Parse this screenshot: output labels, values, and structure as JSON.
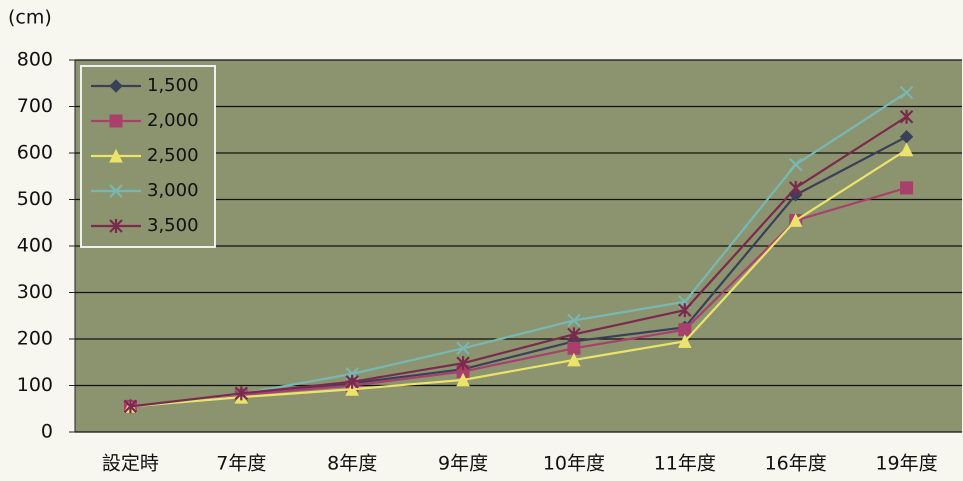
{
  "chart_data": {
    "type": "line",
    "y_label": "(cm)",
    "categories": [
      "設定時",
      "7年度",
      "8年度",
      "9年度",
      "10年度",
      "11年度",
      "16年度",
      "19年度"
    ],
    "series": [
      {
        "name": "1,500",
        "color": "#3b3f5a",
        "marker": "diamond",
        "values": [
          55,
          82,
          105,
          135,
          195,
          225,
          510,
          635
        ]
      },
      {
        "name": "2,000",
        "color": "#a8406c",
        "marker": "square",
        "values": [
          55,
          80,
          100,
          130,
          180,
          220,
          455,
          525
        ]
      },
      {
        "name": "2,500",
        "color": "#ece46a",
        "marker": "triangle",
        "values": [
          55,
          75,
          92,
          112,
          155,
          195,
          455,
          607
        ]
      },
      {
        "name": "3,000",
        "color": "#78b8b4",
        "marker": "x",
        "values": [
          55,
          82,
          125,
          180,
          240,
          280,
          575,
          730
        ]
      },
      {
        "name": "3,500",
        "color": "#7a2a4c",
        "marker": "star",
        "values": [
          55,
          83,
          108,
          148,
          210,
          262,
          525,
          678
        ]
      }
    ],
    "ylim": [
      0,
      800
    ],
    "yticks": [
      0,
      100,
      200,
      300,
      400,
      500,
      600,
      700,
      800
    ],
    "grid": true,
    "legend": "upper left"
  }
}
